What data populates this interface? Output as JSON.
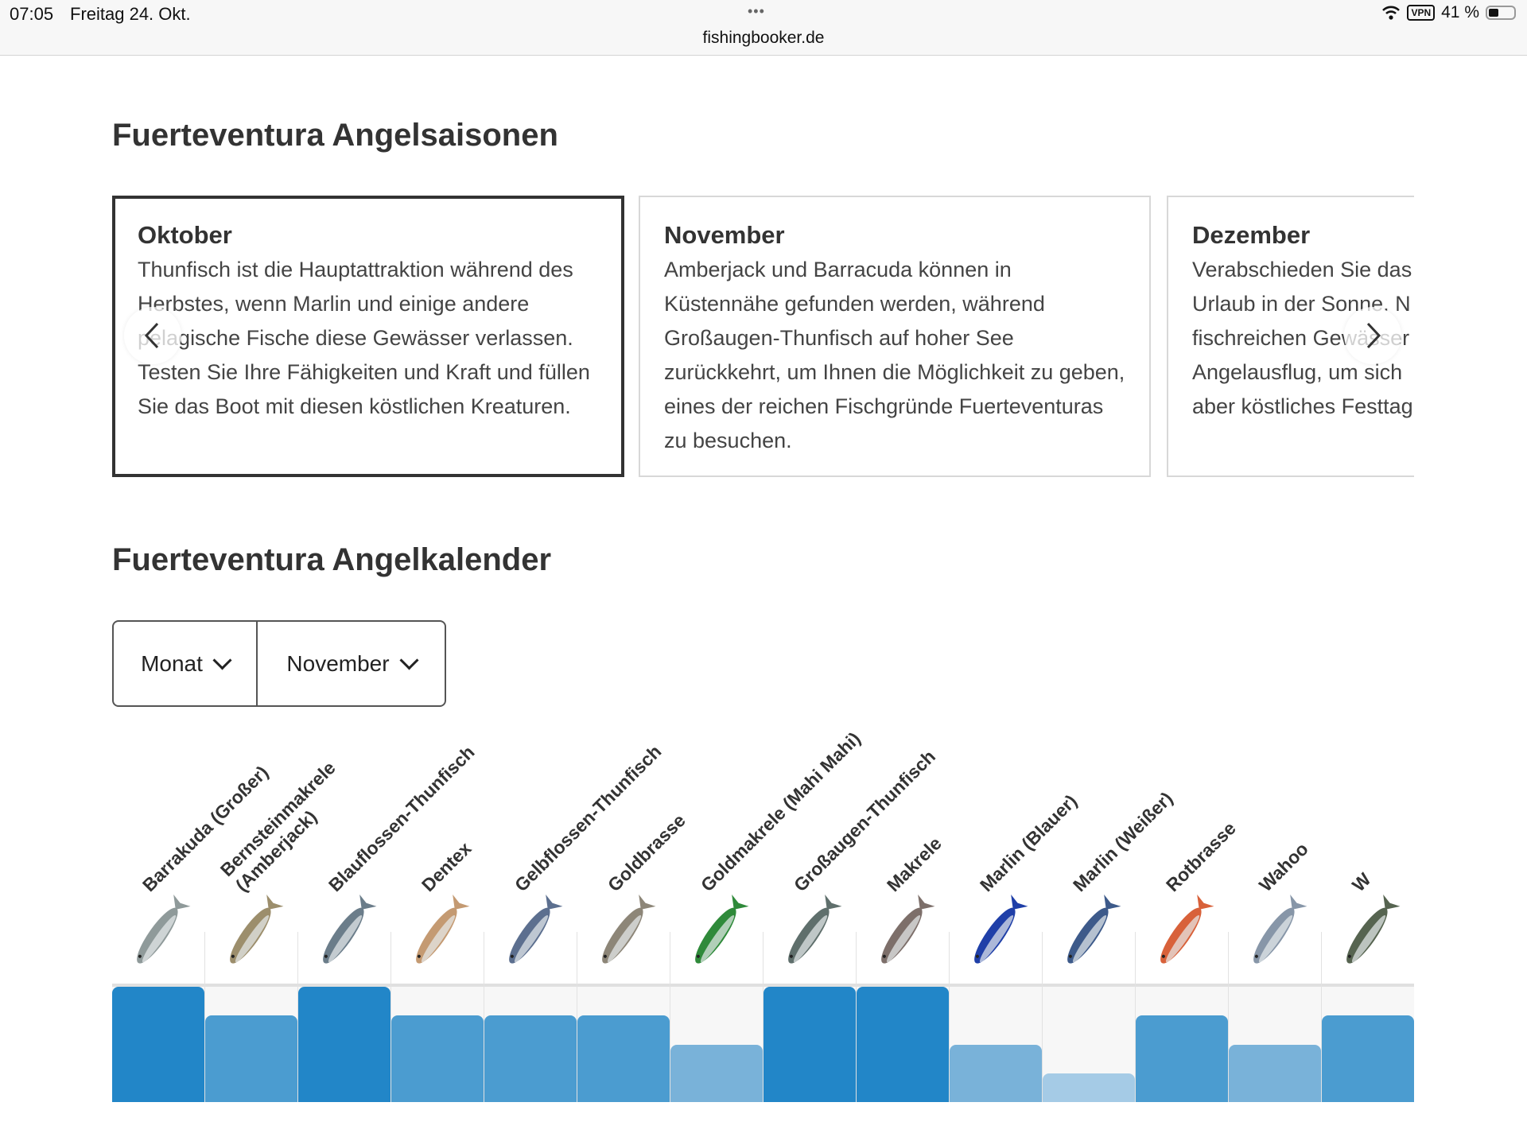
{
  "status_bar": {
    "time": "07:05",
    "date": "Freitag 24. Okt.",
    "dots": "•••",
    "url": "fishingbooker.de",
    "vpn": "VPN",
    "battery": "41 %",
    "battery_level": 0.41
  },
  "seasons": {
    "title": "Fuerteventura Angelsaisonen",
    "cards": [
      {
        "title": "Oktober",
        "text": "Thunfisch ist die Hauptattraktion während des Herbstes, wenn Marlin und einige andere pelagische Fische diese Gewässer verlassen. Testen Sie Ihre Fähigkeiten und Kraft und füllen Sie das Boot mit diesen köstlichen Kreaturen."
      },
      {
        "title": "November",
        "text": "Amberjack und Barracuda können in Küstennähe gefunden werden, während Großaugen-Thunfisch auf hoher See zurückkehrt, um Ihnen die Möglichkeit zu geben, eines der reichen Fischgründe Fuerteventuras zu besuchen."
      },
      {
        "title": "Dezember",
        "text": "Verabschieden Sie das Urlaub in der Sonne. N fischreichen Gewässer Angelausflug, um sich aber köstliches Festtag"
      }
    ],
    "prev_icon": "‹",
    "next_icon": "›"
  },
  "calendar": {
    "title": "Fuerteventura Angelkalender",
    "filter_type": "Monat",
    "month": "November"
  },
  "chart_data": {
    "type": "bar",
    "title": "Fuerteventura Angelkalender",
    "ylim": [
      0,
      4
    ],
    "colors": {
      "4": "#2286c8",
      "3": "#4b9cd0",
      "2": "#79b2d9",
      "1": "#a5cbe6"
    },
    "series": [
      {
        "name": "Barrakuda (Großer)",
        "sub": "",
        "value": 4,
        "fish_color": "#8f9a9a"
      },
      {
        "name": "Bernsteinmakrele",
        "sub": "(Amberjack)",
        "value": 3,
        "fish_color": "#9c8e6c"
      },
      {
        "name": "Blauflossen-Thunfisch",
        "sub": "",
        "value": 4,
        "fish_color": "#6b7d8a"
      },
      {
        "name": "Dentex",
        "sub": "",
        "value": 3,
        "fish_color": "#c49a72"
      },
      {
        "name": "Gelbflossen-Thunfisch",
        "sub": "",
        "value": 3,
        "fish_color": "#5c6f8f"
      },
      {
        "name": "Goldbrasse",
        "sub": "",
        "value": 3,
        "fish_color": "#8d8678"
      },
      {
        "name": "Goldmakrele (Mahi Mahi)",
        "sub": "",
        "value": 2,
        "fish_color": "#2f8a3a"
      },
      {
        "name": "Großaugen-Thunfisch",
        "sub": "",
        "value": 4,
        "fish_color": "#5f6f6c"
      },
      {
        "name": "Makrele",
        "sub": "",
        "value": 4,
        "fish_color": "#7d6f6a"
      },
      {
        "name": "Marlin (Blauer)",
        "sub": "",
        "value": 2,
        "fish_color": "#1f3fa8"
      },
      {
        "name": "Marlin (Weißer)",
        "sub": "",
        "value": 1,
        "fish_color": "#3d5a8a"
      },
      {
        "name": "Rotbrasse",
        "sub": "",
        "value": 3,
        "fish_color": "#d8613a"
      },
      {
        "name": "Wahoo",
        "sub": "",
        "value": 2,
        "fish_color": "#8796a8"
      },
      {
        "name": "W",
        "sub": "",
        "value": 3,
        "fish_color": "#566450"
      }
    ]
  }
}
